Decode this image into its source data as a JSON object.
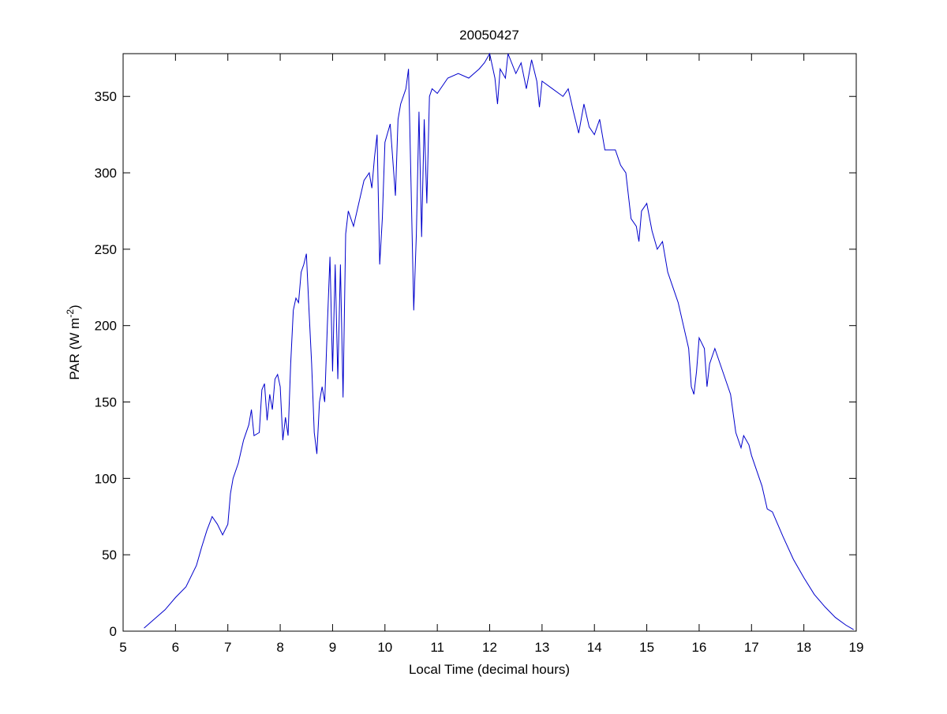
{
  "chart_data": {
    "type": "line",
    "title": "20050427",
    "xlabel": "Local Time (decimal hours)",
    "ylabel": [
      "PAR (W m",
      "-2",
      ")"
    ],
    "xlim": [
      5,
      19
    ],
    "xticks": [
      5,
      6,
      7,
      8,
      9,
      10,
      11,
      12,
      13,
      14,
      15,
      16,
      17,
      18,
      19
    ],
    "ylim": [
      0,
      378
    ],
    "yticks": [
      0,
      50,
      100,
      150,
      200,
      250,
      300,
      350
    ],
    "grid": false,
    "series": [
      {
        "color": "#0000cc",
        "x": [
          5.4,
          5.6,
          5.8,
          6.0,
          6.2,
          6.4,
          6.5,
          6.6,
          6.7,
          6.8,
          6.9,
          7.0,
          7.05,
          7.1,
          7.2,
          7.3,
          7.4,
          7.45,
          7.5,
          7.6,
          7.65,
          7.7,
          7.75,
          7.8,
          7.85,
          7.9,
          7.95,
          8.0,
          8.05,
          8.1,
          8.15,
          8.2,
          8.25,
          8.3,
          8.35,
          8.4,
          8.45,
          8.5,
          8.55,
          8.6,
          8.65,
          8.7,
          8.75,
          8.8,
          8.85,
          8.9,
          8.95,
          9.0,
          9.05,
          9.1,
          9.15,
          9.2,
          9.25,
          9.3,
          9.4,
          9.5,
          9.6,
          9.7,
          9.75,
          9.8,
          9.85,
          9.9,
          9.95,
          10.0,
          10.1,
          10.2,
          10.25,
          10.3,
          10.4,
          10.45,
          10.5,
          10.55,
          10.6,
          10.65,
          10.7,
          10.75,
          10.8,
          10.85,
          10.9,
          11.0,
          11.2,
          11.4,
          11.6,
          11.8,
          11.9,
          12.0,
          12.1,
          12.15,
          12.2,
          12.3,
          12.35,
          12.5,
          12.6,
          12.7,
          12.8,
          12.9,
          12.95,
          13.0,
          13.2,
          13.4,
          13.5,
          13.6,
          13.7,
          13.8,
          13.9,
          14.0,
          14.1,
          14.2,
          14.4,
          14.5,
          14.6,
          14.7,
          14.8,
          14.85,
          14.9,
          15.0,
          15.1,
          15.2,
          15.3,
          15.4,
          15.5,
          15.6,
          15.7,
          15.8,
          15.85,
          15.9,
          15.95,
          16.0,
          16.1,
          16.15,
          16.2,
          16.3,
          16.4,
          16.5,
          16.6,
          16.7,
          16.8,
          16.85,
          16.95,
          17.0,
          17.1,
          17.2,
          17.3,
          17.4,
          17.5,
          17.6,
          17.8,
          18.0,
          18.2,
          18.4,
          18.6,
          18.8,
          18.95
        ],
        "values": [
          2,
          8,
          14,
          22,
          29,
          43,
          55,
          66,
          75,
          70,
          63,
          70,
          90,
          100,
          110,
          125,
          135,
          145,
          128,
          130,
          158,
          162,
          138,
          155,
          145,
          165,
          168,
          160,
          125,
          140,
          128,
          175,
          210,
          218,
          215,
          235,
          240,
          247,
          210,
          175,
          130,
          116,
          150,
          160,
          150,
          200,
          245,
          170,
          240,
          165,
          240,
          153,
          260,
          275,
          265,
          280,
          295,
          300,
          290,
          310,
          325,
          240,
          270,
          320,
          332,
          285,
          335,
          345,
          355,
          368,
          290,
          210,
          260,
          340,
          258,
          335,
          280,
          350,
          355,
          352,
          362,
          365,
          362,
          368,
          372,
          378,
          362,
          345,
          368,
          362,
          378,
          365,
          372,
          355,
          374,
          360,
          343,
          360,
          355,
          350,
          355,
          340,
          326,
          345,
          330,
          325,
          335,
          315,
          315,
          305,
          300,
          270,
          265,
          255,
          275,
          280,
          262,
          250,
          255,
          235,
          225,
          215,
          200,
          185,
          160,
          155,
          170,
          192,
          185,
          160,
          175,
          185,
          175,
          165,
          155,
          130,
          120,
          128,
          122,
          115,
          105,
          95,
          80,
          78,
          70,
          62,
          47,
          35,
          24,
          16,
          9,
          4,
          1
        ]
      }
    ]
  }
}
